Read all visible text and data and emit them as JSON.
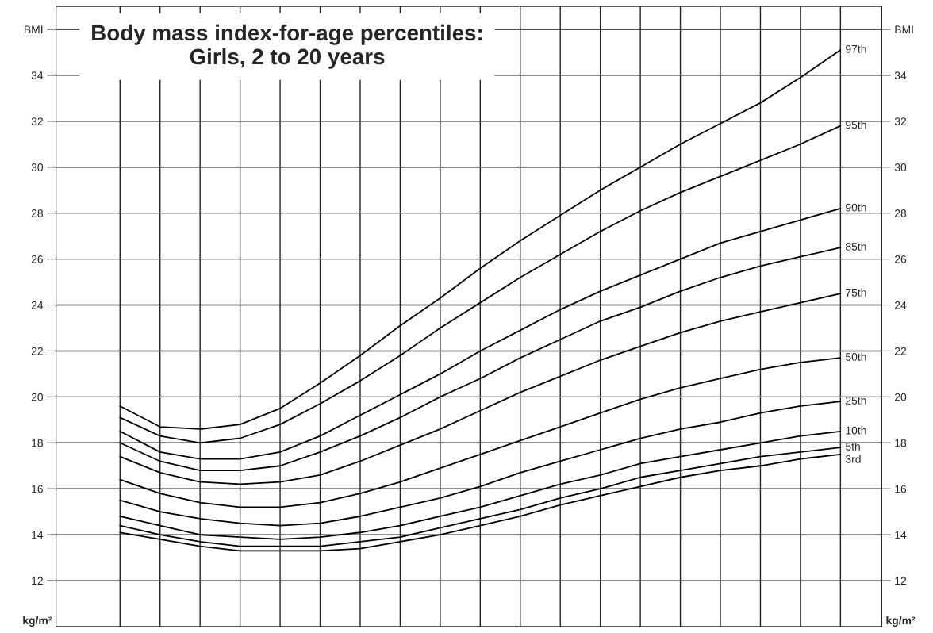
{
  "chart_data": {
    "type": "line",
    "title": "Body mass index-for-age percentiles:\nGirls, 2 to 20 years",
    "ylabel": "kg/m²",
    "y2label": "kg/m²",
    "categories": [
      null,
      null,
      null,
      null,
      null,
      null,
      null,
      null,
      null,
      null,
      null,
      null,
      null,
      null,
      null,
      null,
      null,
      null,
      null
    ],
    "series": [
      {
        "name": "97th",
        "color": "#000000",
        "values": [
          19.6,
          18.7,
          18.6,
          18.8,
          19.5,
          20.6,
          21.8,
          23.1,
          24.3,
          25.6,
          26.8,
          27.9,
          29.0,
          30.0,
          31.0,
          31.9,
          32.8,
          33.9,
          35.1
        ]
      },
      {
        "name": "95th",
        "color": "#000000",
        "values": [
          19.1,
          18.3,
          18.0,
          18.2,
          18.8,
          19.7,
          20.7,
          21.8,
          23.0,
          24.1,
          25.2,
          26.2,
          27.2,
          28.1,
          28.9,
          29.6,
          30.3,
          31.0,
          31.8
        ]
      },
      {
        "name": "90th",
        "color": "#000000",
        "values": [
          18.5,
          17.6,
          17.3,
          17.3,
          17.6,
          18.3,
          19.2,
          20.1,
          21.0,
          22.0,
          22.9,
          23.8,
          24.6,
          25.3,
          26.0,
          26.7,
          27.2,
          27.7,
          28.2
        ]
      },
      {
        "name": "85th",
        "color": "#000000",
        "values": [
          18.0,
          17.2,
          16.8,
          16.8,
          17.0,
          17.6,
          18.3,
          19.1,
          20.0,
          20.8,
          21.7,
          22.5,
          23.3,
          23.9,
          24.6,
          25.2,
          25.7,
          26.1,
          26.5
        ]
      },
      {
        "name": "75th",
        "color": "#000000",
        "values": [
          17.4,
          16.7,
          16.3,
          16.2,
          16.3,
          16.6,
          17.2,
          17.9,
          18.6,
          19.4,
          20.2,
          20.9,
          21.6,
          22.2,
          22.8,
          23.3,
          23.7,
          24.1,
          24.5
        ]
      },
      {
        "name": "50th",
        "color": "#000000",
        "values": [
          16.4,
          15.8,
          15.4,
          15.2,
          15.2,
          15.4,
          15.8,
          16.3,
          16.9,
          17.5,
          18.1,
          18.7,
          19.3,
          19.9,
          20.4,
          20.8,
          21.2,
          21.5,
          21.7
        ]
      },
      {
        "name": "25th",
        "color": "#000000",
        "values": [
          15.5,
          15.0,
          14.7,
          14.5,
          14.4,
          14.5,
          14.8,
          15.2,
          15.6,
          16.1,
          16.7,
          17.2,
          17.7,
          18.2,
          18.6,
          18.9,
          19.3,
          19.6,
          19.8
        ]
      },
      {
        "name": "10th",
        "color": "#000000",
        "values": [
          14.8,
          14.4,
          14.0,
          13.9,
          13.8,
          13.9,
          14.1,
          14.4,
          14.8,
          15.2,
          15.7,
          16.2,
          16.6,
          17.1,
          17.4,
          17.7,
          18.0,
          18.3,
          18.5
        ]
      },
      {
        "name": "5th",
        "color": "#000000",
        "values": [
          14.4,
          14.0,
          13.7,
          13.5,
          13.5,
          13.5,
          13.7,
          13.9,
          14.3,
          14.7,
          15.1,
          15.6,
          16.0,
          16.5,
          16.8,
          17.1,
          17.4,
          17.6,
          17.8
        ]
      },
      {
        "name": "3rd",
        "color": "#000000",
        "values": [
          14.1,
          13.8,
          13.5,
          13.3,
          13.3,
          13.3,
          13.4,
          13.7,
          14.0,
          14.4,
          14.8,
          15.3,
          15.7,
          16.1,
          16.5,
          16.8,
          17.0,
          17.3,
          17.5
        ]
      }
    ],
    "ylim": [
      10,
      37
    ],
    "yticks": [
      12,
      14,
      16,
      18,
      20,
      22,
      24,
      26,
      28,
      30,
      32,
      34,
      {
        "value": 36,
        "label": "BMI"
      }
    ],
    "y2lim": [
      10,
      37
    ],
    "y2ticks": [
      12,
      14,
      16,
      18,
      20,
      22,
      24,
      26,
      28,
      30,
      32,
      34,
      {
        "value": 36,
        "label": "BMI"
      }
    ],
    "grid": true,
    "marker": "none",
    "line_style": "solid"
  }
}
